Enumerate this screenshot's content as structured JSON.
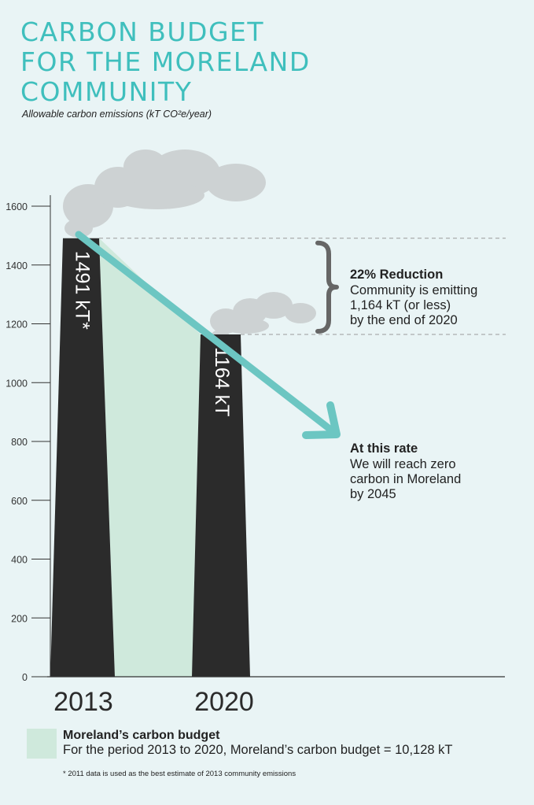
{
  "header": {
    "title_lines": [
      "CARBON BUDGET",
      "FOR THE MORELAND",
      "COMMUNITY"
    ],
    "subtitle": "Allowable carbon emissions (kT CO²e/year)"
  },
  "chart_data": {
    "type": "bar",
    "categories": [
      "2013",
      "2020"
    ],
    "values": [
      1491,
      1164
    ],
    "value_labels": [
      "1491 kT*",
      "1164 kT"
    ],
    "ylim": [
      0,
      1600
    ],
    "yticks": [
      0,
      200,
      400,
      600,
      800,
      1000,
      1200,
      1400,
      1600
    ],
    "reference_lines": [
      1491,
      1164
    ],
    "annotations": [
      {
        "heading": "22% Reduction",
        "lines": [
          "Community is emitting",
          "1,164 kT (or less)",
          "by the end of 2020"
        ]
      },
      {
        "heading": "At this rate",
        "lines": [
          "We will reach zero",
          "carbon in Moreland",
          "by 2045"
        ]
      }
    ],
    "colors": {
      "bar": "#2b2b2b",
      "budget_area": "#cfe9dc",
      "trend_arrow": "#6cc6c2",
      "smoke": "#cdd2d3",
      "bracket": "#666666"
    }
  },
  "legend": {
    "title": "Moreland’s carbon budget",
    "text": "For the period 2013 to 2020, Moreland’s carbon budget = 10,128 kT"
  },
  "footnote": "* 2011 data is used as the best estimate of 2013 community emissions"
}
